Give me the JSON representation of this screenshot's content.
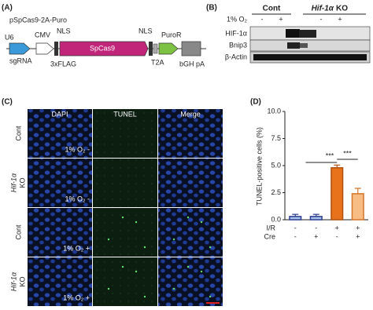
{
  "panel_a": {
    "letter": "(A)",
    "plasmid": "pSpCas9-2A-Puro",
    "u6": "U6",
    "sgrna": "sgRNA",
    "cmv": "CMV",
    "nls_1": "NLS",
    "flag": "3xFLAG",
    "cas9": "SpCas9",
    "nls_2": "NLS",
    "t2a": "T2A",
    "puro": "PuroR",
    "bgh": "bGH pA"
  },
  "panel_b": {
    "letter": "(B)",
    "cont": "Cont",
    "ko_gene": "Hif-1α",
    "ko_suffix": "KO",
    "oxygen": "1% O₂",
    "signs": [
      "-",
      "+",
      "-",
      "+"
    ],
    "rows": [
      "HIF-1α",
      "Bnip3",
      "β-Actin"
    ]
  },
  "panel_c": {
    "letter": "(C)",
    "columns": [
      "DAPI",
      "TUNEL",
      "Merge"
    ],
    "rows": [
      {
        "gene": "Cont",
        "suffix": null,
        "condition": "1% O₂ -"
      },
      {
        "gene": "Hif-1α",
        "suffix": "KO",
        "condition": "1% O₂ -"
      },
      {
        "gene": "Cont",
        "suffix": null,
        "condition": "1% O₂ +"
      },
      {
        "gene": "Hif-1α",
        "suffix": "KO",
        "condition": "1% O₂ +"
      }
    ]
  },
  "chart_data": {
    "type": "bar",
    "letter": "(D)",
    "ylabel": "TUNEL-positive cells (%)",
    "values": [
      0.3,
      0.3,
      4.8,
      2.4
    ],
    "errors": [
      0.2,
      0.2,
      0.25,
      0.5
    ],
    "colors": [
      "#a9c2e8",
      "#a9c2e8",
      "#e8711c",
      "#f7bd85"
    ],
    "edge_colors": [
      "#2c3e91",
      "#2c3e91",
      "#b0500f",
      "#d5742a"
    ],
    "ylim": [
      0,
      10
    ],
    "yticks": [
      {
        "value": 0,
        "label": "0.0"
      },
      {
        "value": 2.5,
        "label": "2.5"
      },
      {
        "value": 5,
        "label": "5.0"
      },
      {
        "value": 7.5,
        "label": "7.5"
      },
      {
        "value": 10,
        "label": "10.0"
      }
    ],
    "conditions": [
      {
        "name": "I/R",
        "signs": [
          "-",
          "-",
          "+",
          "+"
        ]
      },
      {
        "name": "Cre",
        "signs": [
          "-",
          "+",
          "-",
          "+"
        ]
      }
    ],
    "annotations": [
      "***",
      "***"
    ]
  }
}
